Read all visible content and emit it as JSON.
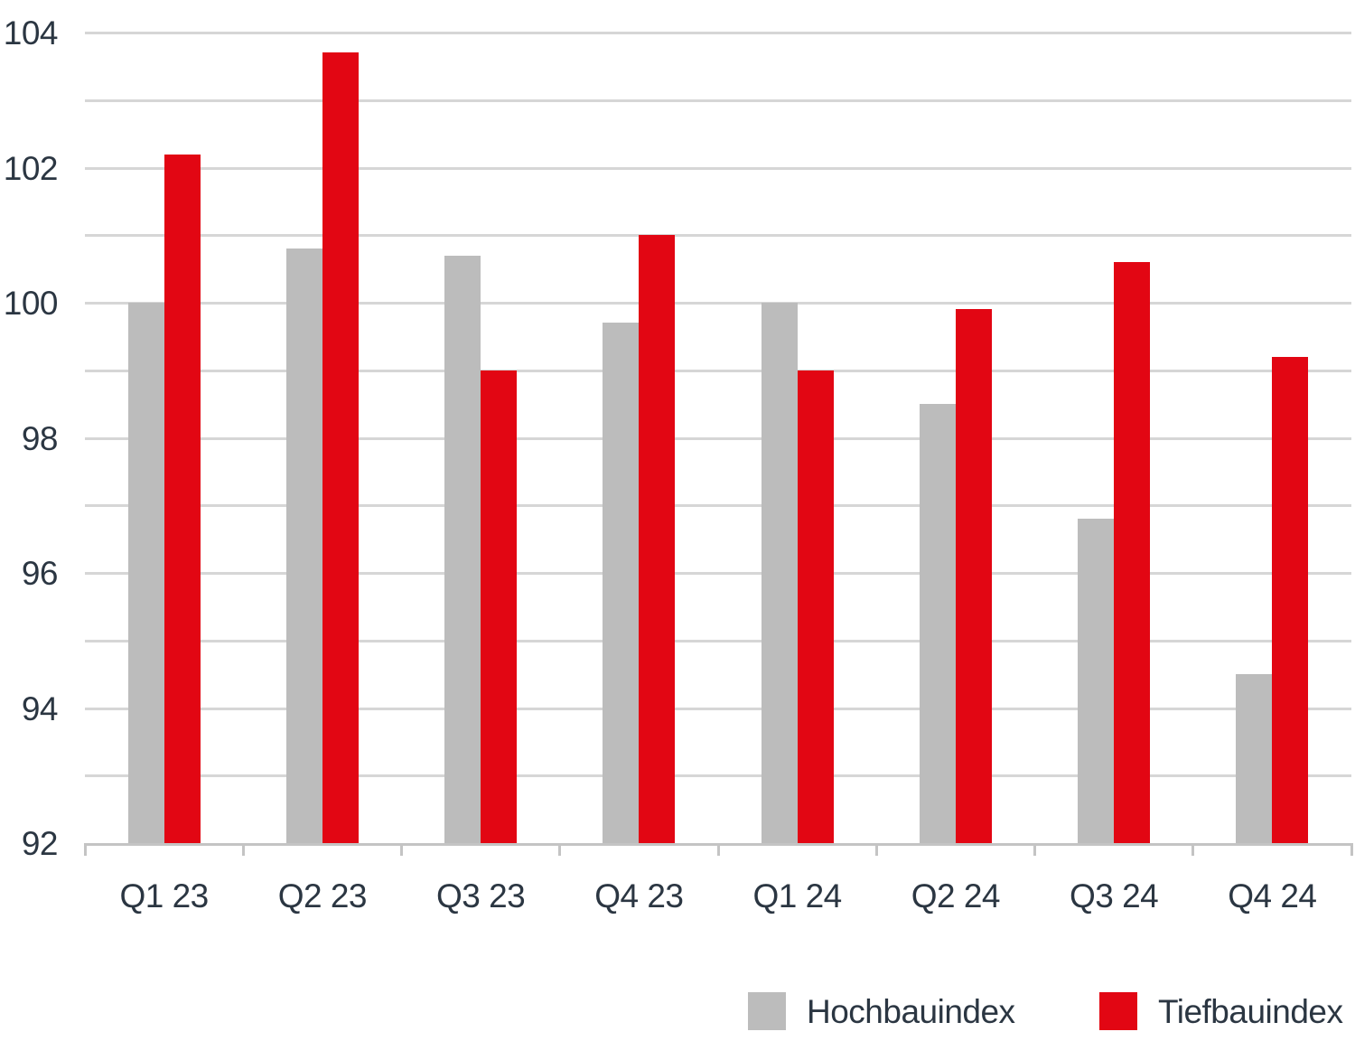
{
  "chart_data": {
    "type": "bar",
    "title": "",
    "categories": [
      "Q1 23",
      "Q2 23",
      "Q3 23",
      "Q4 23",
      "Q1 24",
      "Q2 24",
      "Q3 24",
      "Q4 24"
    ],
    "series": [
      {
        "name": "Hochbauindex",
        "color": "#bcbcbc",
        "values": [
          100.0,
          100.8,
          100.7,
          99.7,
          100.0,
          98.5,
          96.8,
          94.5
        ]
      },
      {
        "name": "Tiefbauindex",
        "color": "#e20613",
        "values": [
          102.2,
          103.7,
          99.0,
          101.0,
          99.0,
          99.9,
          100.6,
          99.2
        ]
      }
    ],
    "xlabel": "",
    "ylabel": "",
    "ylim": [
      92,
      104
    ],
    "y_major_tick_labels": [
      92,
      94,
      96,
      98,
      100,
      102,
      104
    ],
    "y_grid_step": 1,
    "grid": true,
    "legend_position": "bottom-right",
    "colors": {
      "background": "#ffffff",
      "text": "#2b3642",
      "gridline": "#d6d6d6",
      "axis": "#c4c4c4"
    }
  }
}
